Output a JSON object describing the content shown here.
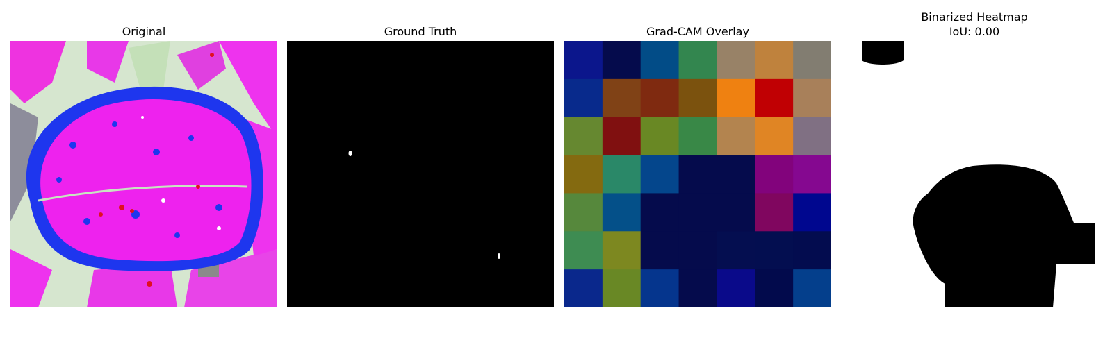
{
  "panels": [
    {
      "title": "Original"
    },
    {
      "title": "Ground Truth"
    },
    {
      "title": "Grad-CAM Overlay"
    },
    {
      "title": "Binarized Heatmap",
      "subtitle": "IoU: 0.00"
    }
  ],
  "gradcam_grid": {
    "rows": 7,
    "cols": 7,
    "colors": [
      [
        "#0b168c",
        "#050b4c",
        "#024c87",
        "#33864f",
        "#988267",
        "#bf823d",
        "#827d71"
      ],
      [
        "#082a8c",
        "#804216",
        "#7f2a10",
        "#7b520e",
        "#ef8111",
        "#c00003",
        "#a8805a"
      ],
      [
        "#668830",
        "#801010",
        "#698824",
        "#398847",
        "#b3844f",
        "#e08524",
        "#807083"
      ],
      [
        "#846a10",
        "#2a8868",
        "#04468c",
        "#050b4c",
        "#050b4c",
        "#82037c",
        "#850890"
      ],
      [
        "#56883c",
        "#045089",
        "#050b4c",
        "#050b4c",
        "#050b4c",
        "#80065f",
        "#00078f"
      ],
      [
        "#3e8c52",
        "#7d8820",
        "#050b4c",
        "#050b4c",
        "#040e50",
        "#030e50",
        "#030c4f"
      ],
      [
        "#0a288c",
        "#698825",
        "#05358d",
        "#050b4c",
        "#0a0a8a",
        "#020a4c",
        "#043f8c"
      ]
    ]
  },
  "colors": {
    "leaf_magenta": "#ee22ee",
    "leaf_blue": "#1e36ee",
    "pale_green": "#c8e4c0",
    "grey": "#8f8f8f",
    "mask_black": "#000000",
    "mask_white": "#ffffff"
  }
}
